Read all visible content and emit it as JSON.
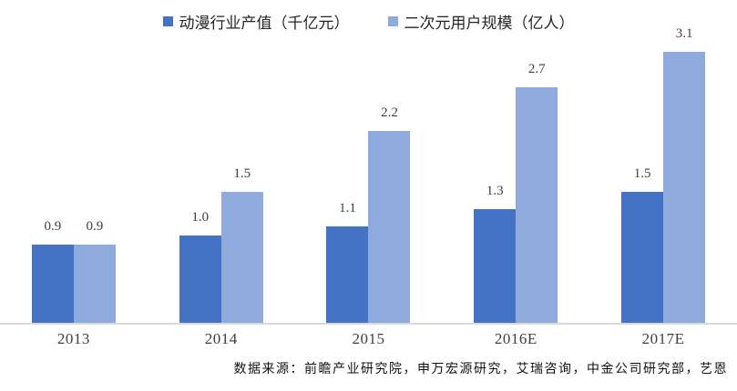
{
  "chart_data": {
    "type": "bar",
    "categories": [
      "2013",
      "2014",
      "2015",
      "2016E",
      "2017E"
    ],
    "series": [
      {
        "name": "动漫行业产值（千亿元）",
        "color": "#4472C4",
        "values": [
          0.9,
          1.0,
          1.1,
          1.3,
          1.5
        ]
      },
      {
        "name": "二次元用户规模（亿人）",
        "color": "#8FAADC",
        "values": [
          0.9,
          1.5,
          2.2,
          2.7,
          3.1
        ]
      }
    ],
    "title": "",
    "xlabel": "",
    "ylabel": "",
    "ylim": [
      0,
      3.3
    ],
    "grid": false,
    "legend_position": "top",
    "value_labels_decimals": 1
  },
  "colors": {
    "axis_line": "#D9D9D9",
    "value_label_text": "#3F3F3F",
    "category_label_text": "#404040"
  },
  "source_note": "数据来源：前瞻产业研究院，申万宏源研究，艾瑞咨询，中金公司研究部，艺恩"
}
